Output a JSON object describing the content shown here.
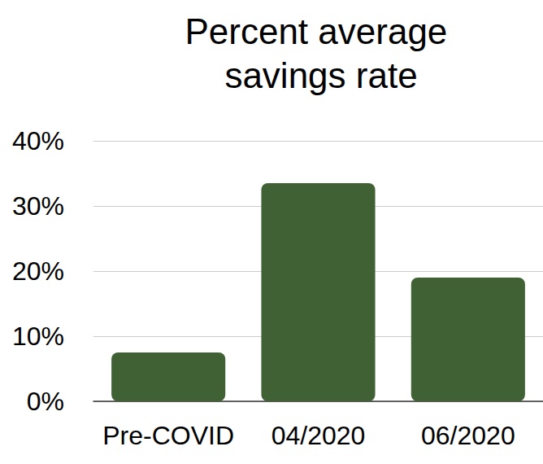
{
  "chart_data": {
    "type": "bar",
    "title": "Percent average savings rate",
    "categories": [
      "Pre-COVID",
      "04/2020",
      "06/2020"
    ],
    "values": [
      7.5,
      33.5,
      19
    ],
    "color": "#3f6134",
    "ylim": [
      0,
      40
    ],
    "yticks": [
      {
        "value": 0,
        "label": "0%"
      },
      {
        "value": 10,
        "label": "10%"
      },
      {
        "value": 20,
        "label": "20%"
      },
      {
        "value": 30,
        "label": "30%"
      },
      {
        "value": 40,
        "label": "40%"
      }
    ],
    "grid": true
  }
}
